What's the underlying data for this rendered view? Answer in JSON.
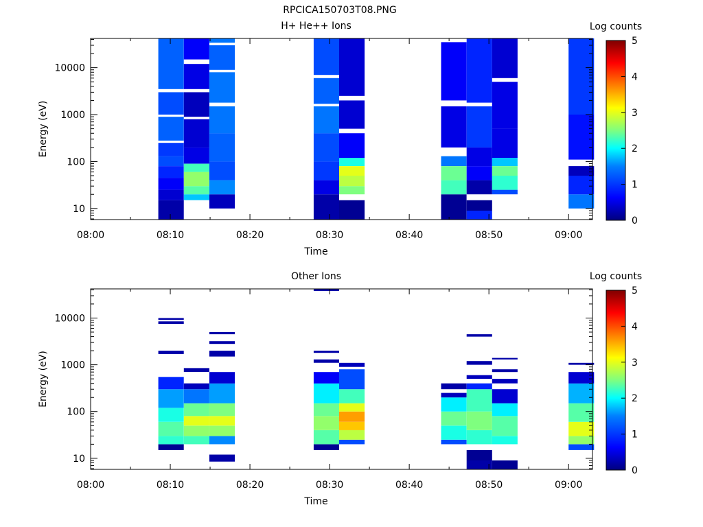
{
  "figure": {
    "title": "RPCICA150703T08.PNG"
  },
  "colors": {
    "colormap": [
      "#00007f",
      "#0000ff",
      "#007fff",
      "#00ffff",
      "#7fff7f",
      "#ffff00",
      "#ff7f00",
      "#ff0000",
      "#7f0000"
    ],
    "axis": "#000000",
    "background": "#ffffff"
  },
  "chart_data": [
    {
      "type": "heatmap",
      "title": "H+ He++ Ions",
      "xlabel": "Time",
      "ylabel": "Energy (eV)",
      "colorbar_label": "Log counts",
      "colorbar_range": [
        0,
        5
      ],
      "colorbar_ticks": [
        "0",
        "1",
        "2",
        "3",
        "4",
        "5"
      ],
      "x_ticks": [
        "08:00",
        "08:10",
        "08:20",
        "08:30",
        "08:40",
        "08:50",
        "09:00"
      ],
      "y_ticks": [
        "10",
        "100",
        "1000",
        "10000"
      ],
      "x_range_minutes": [
        0,
        63
      ],
      "y_range_eV": [
        5.8,
        42000
      ],
      "y_scale": "log",
      "columns": [
        {
          "t0": 8.5,
          "t1": 11.7,
          "rows": [
            [
              5.8,
              15,
              0.2
            ],
            [
              15,
              25,
              0.4
            ],
            [
              25,
              45,
              0.6
            ],
            [
              45,
              80,
              0.8
            ],
            [
              80,
              130,
              1.0
            ],
            [
              130,
              250,
              0.9
            ],
            [
              280,
              900,
              1.1
            ],
            [
              1000,
              3000,
              1.0
            ],
            [
              3500,
              42000,
              1.1
            ]
          ]
        },
        {
          "t0": 11.7,
          "t1": 14.9,
          "rows": [
            [
              15,
              20,
              1.6
            ],
            [
              20,
              30,
              2.3
            ],
            [
              30,
              60,
              2.6
            ],
            [
              60,
              90,
              2.2
            ],
            [
              90,
              200,
              0.5
            ],
            [
              200,
              800,
              0.4
            ],
            [
              900,
              3000,
              0.3
            ],
            [
              3500,
              12000,
              0.5
            ],
            [
              15000,
              42000,
              0.6
            ]
          ]
        },
        {
          "t0": 14.9,
          "t1": 18.1,
          "rows": [
            [
              10,
              20,
              0.3
            ],
            [
              20,
              40,
              1.3
            ],
            [
              40,
              100,
              1.0
            ],
            [
              100,
              400,
              1.1
            ],
            [
              400,
              1500,
              1.2
            ],
            [
              1800,
              8000,
              1.2
            ],
            [
              9000,
              30000,
              1.1
            ],
            [
              34000,
              42000,
              1.2
            ]
          ]
        },
        {
          "t0": 28.0,
          "t1": 31.2,
          "rows": [
            [
              5.8,
              20,
              0.2
            ],
            [
              20,
              40,
              0.5
            ],
            [
              40,
              100,
              0.9
            ],
            [
              100,
              400,
              1.0
            ],
            [
              400,
              1500,
              1.2
            ],
            [
              1700,
              6000,
              1.1
            ],
            [
              7000,
              42000,
              1.0
            ]
          ]
        },
        {
          "t0": 31.2,
          "t1": 34.4,
          "rows": [
            [
              5.8,
              15,
              0.1
            ],
            [
              20,
              30,
              2.5
            ],
            [
              30,
              50,
              2.8
            ],
            [
              50,
              80,
              3.0
            ],
            [
              80,
              120,
              2.0
            ],
            [
              120,
              400,
              0.6
            ],
            [
              500,
              2000,
              0.4
            ],
            [
              2500,
              42000,
              0.4
            ]
          ]
        },
        {
          "t0": 44.0,
          "t1": 47.2,
          "rows": [
            [
              5.8,
              20,
              0.1
            ],
            [
              20,
              40,
              2.2
            ],
            [
              40,
              80,
              2.4
            ],
            [
              80,
              130,
              1.2
            ],
            [
              200,
              1500,
              0.5
            ],
            [
              2000,
              35000,
              0.6
            ]
          ]
        },
        {
          "t0": 47.2,
          "t1": 50.4,
          "rows": [
            [
              5.8,
              9,
              0.8
            ],
            [
              9,
              15,
              0.1
            ],
            [
              20,
              40,
              0.2
            ],
            [
              40,
              80,
              0.6
            ],
            [
              80,
              200,
              0.5
            ],
            [
              200,
              1500,
              0.9
            ],
            [
              1800,
              42000,
              0.8
            ]
          ]
        },
        {
          "t0": 50.4,
          "t1": 53.6,
          "rows": [
            [
              20,
              25,
              1.0
            ],
            [
              25,
              50,
              2.1
            ],
            [
              50,
              80,
              2.4
            ],
            [
              80,
              120,
              1.6
            ],
            [
              120,
              500,
              0.5
            ],
            [
              500,
              5000,
              0.5
            ],
            [
              6000,
              42000,
              0.4
            ]
          ]
        },
        {
          "t0": 60.0,
          "t1": 63.2,
          "rows": [
            [
              10,
              20,
              1.2
            ],
            [
              20,
              50,
              0.8
            ],
            [
              50,
              80,
              0.3
            ],
            [
              110,
              1000,
              0.7
            ],
            [
              1000,
              42000,
              0.9
            ]
          ]
        }
      ]
    },
    {
      "type": "heatmap",
      "title": "Other Ions",
      "xlabel": "Time",
      "ylabel": "Energy (eV)",
      "colorbar_label": "Log counts",
      "colorbar_range": [
        0,
        5
      ],
      "colorbar_ticks": [
        "0",
        "1",
        "2",
        "3",
        "4",
        "5"
      ],
      "x_ticks": [
        "08:00",
        "08:10",
        "08:20",
        "08:30",
        "08:40",
        "08:50",
        "09:00"
      ],
      "y_ticks": [
        "10",
        "100",
        "1000",
        "10000"
      ],
      "x_range_minutes": [
        0,
        63
      ],
      "y_range_eV": [
        5.8,
        42000
      ],
      "y_scale": "log",
      "columns": [
        {
          "t0": 8.5,
          "t1": 11.7,
          "rows": [
            [
              15,
              20,
              0.1
            ],
            [
              20,
              30,
              2.1
            ],
            [
              30,
              60,
              2.3
            ],
            [
              60,
              120,
              2.0
            ],
            [
              120,
              300,
              1.4
            ],
            [
              300,
              550,
              0.8
            ],
            [
              1700,
              2000,
              0.2
            ],
            [
              7500,
              8500,
              0.2
            ],
            [
              9200,
              10000,
              0.2
            ]
          ]
        },
        {
          "t0": 11.7,
          "t1": 14.9,
          "rows": [
            [
              20,
              30,
              2.2
            ],
            [
              30,
              50,
              2.6
            ],
            [
              50,
              80,
              3.0
            ],
            [
              80,
              150,
              2.4
            ],
            [
              150,
              300,
              1.2
            ],
            [
              300,
              400,
              0.3
            ],
            [
              700,
              850,
              0.2
            ]
          ]
        },
        {
          "t0": 14.9,
          "t1": 18.1,
          "rows": [
            [
              8.5,
              12,
              0.2
            ],
            [
              20,
              30,
              1.3
            ],
            [
              30,
              50,
              2.6
            ],
            [
              50,
              80,
              3.0
            ],
            [
              80,
              150,
              2.5
            ],
            [
              150,
              400,
              1.4
            ],
            [
              400,
              700,
              0.4
            ],
            [
              1500,
              2000,
              0.2
            ],
            [
              2800,
              3200,
              0.2
            ],
            [
              4500,
              5000,
              0.2
            ]
          ]
        },
        {
          "t0": 28.0,
          "t1": 31.2,
          "rows": [
            [
              15,
              20,
              0.1
            ],
            [
              20,
              40,
              2.3
            ],
            [
              40,
              80,
              2.6
            ],
            [
              80,
              150,
              2.4
            ],
            [
              150,
              400,
              1.8
            ],
            [
              400,
              700,
              0.6
            ],
            [
              1100,
              1300,
              0.2
            ],
            [
              1800,
              2000,
              0.2
            ],
            [
              38000,
              42000,
              0.2
            ]
          ]
        },
        {
          "t0": 31.2,
          "t1": 34.4,
          "rows": [
            [
              20,
              25,
              1.0
            ],
            [
              25,
              40,
              2.8
            ],
            [
              40,
              60,
              3.4
            ],
            [
              60,
              100,
              3.6
            ],
            [
              100,
              150,
              3.0
            ],
            [
              150,
              300,
              2.2
            ],
            [
              300,
              800,
              1.0
            ],
            [
              900,
              1100,
              0.3
            ]
          ]
        },
        {
          "t0": 44.0,
          "t1": 47.2,
          "rows": [
            [
              20,
              25,
              1.0
            ],
            [
              25,
              50,
              2.0
            ],
            [
              50,
              100,
              2.4
            ],
            [
              100,
              200,
              1.8
            ],
            [
              200,
              250,
              0.3
            ],
            [
              300,
              400,
              0.2
            ]
          ]
        },
        {
          "t0": 47.2,
          "t1": 50.4,
          "rows": [
            [
              5.8,
              9,
              0.2
            ],
            [
              9,
              15,
              0.1
            ],
            [
              20,
              40,
              2.1
            ],
            [
              40,
              100,
              2.5
            ],
            [
              100,
              300,
              2.2
            ],
            [
              300,
              400,
              0.8
            ],
            [
              500,
              600,
              0.3
            ],
            [
              1000,
              1200,
              0.2
            ],
            [
              4000,
              4500,
              0.2
            ]
          ]
        },
        {
          "t0": 50.4,
          "t1": 53.6,
          "rows": [
            [
              5.8,
              9,
              0.1
            ],
            [
              20,
              30,
              2.0
            ],
            [
              30,
              80,
              2.3
            ],
            [
              80,
              150,
              1.8
            ],
            [
              150,
              300,
              0.4
            ],
            [
              400,
              500,
              0.3
            ],
            [
              700,
              800,
              0.2
            ],
            [
              1300,
              1400,
              0.2
            ]
          ]
        },
        {
          "t0": 60.0,
          "t1": 63.2,
          "rows": [
            [
              15,
              20,
              1.0
            ],
            [
              20,
              30,
              2.6
            ],
            [
              30,
              60,
              3.0
            ],
            [
              60,
              150,
              2.3
            ],
            [
              150,
              400,
              1.5
            ],
            [
              400,
              700,
              0.4
            ],
            [
              1000,
              1100,
              0.2
            ]
          ]
        }
      ]
    }
  ]
}
